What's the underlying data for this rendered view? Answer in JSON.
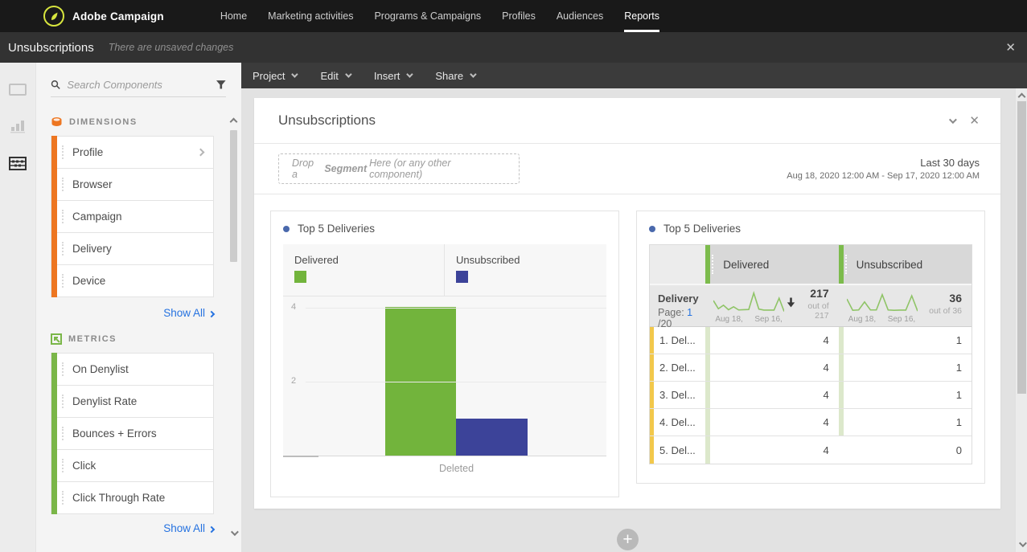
{
  "topnav": {
    "brand": "Adobe Campaign",
    "items": [
      {
        "label": "Home"
      },
      {
        "label": "Marketing activities"
      },
      {
        "label": "Programs & Campaigns"
      },
      {
        "label": "Profiles"
      },
      {
        "label": "Audiences"
      },
      {
        "label": "Reports",
        "active": true
      }
    ]
  },
  "titlebar": {
    "title": "Unsubscriptions",
    "status": "There are unsaved changes"
  },
  "menubar": {
    "items": [
      {
        "label": "Project"
      },
      {
        "label": "Edit"
      },
      {
        "label": "Insert"
      },
      {
        "label": "Share"
      }
    ]
  },
  "sidebar": {
    "search_placeholder": "Search Components",
    "sections": [
      {
        "label": "DIMENSIONS",
        "accent": "#ed7621",
        "items": [
          "Profile",
          "Browser",
          "Campaign",
          "Delivery",
          "Device"
        ],
        "show_all": "Show All"
      },
      {
        "label": "METRICS",
        "accent": "#7ab648",
        "items": [
          "On Denylist",
          "Denylist Rate",
          "Bounces + Errors",
          "Click",
          "Click Through Rate"
        ],
        "show_all": "Show All"
      }
    ]
  },
  "panel": {
    "title": "Unsubscriptions",
    "dropzone": {
      "pre": "Drop a",
      "emphasis": "Segment",
      "post": "Here (or any other component)"
    },
    "date_range": {
      "label": "Last 30 days",
      "detail": "Aug 18, 2020 12:00 AM - Sep 17, 2020 12:00 AM"
    }
  },
  "chart_data": [
    {
      "type": "bar",
      "title": "Top 5 Deliveries",
      "categories": [
        "Deleted"
      ],
      "series": [
        {
          "name": "Delivered",
          "values": [
            4
          ],
          "color": "#72b43c"
        },
        {
          "name": "Unsubscribed",
          "values": [
            1
          ],
          "color": "#3c4399"
        }
      ],
      "ylim": [
        0,
        4.3
      ],
      "yticks": [
        4,
        2
      ],
      "grid": true,
      "legend_position": "top"
    },
    {
      "type": "table",
      "title": "Top 5 Deliveries",
      "row_dimension": "Delivery",
      "page_label": "Page:",
      "page": "1",
      "page_total": "/20",
      "columns": [
        {
          "name": "Delivered",
          "total": "217",
          "out_of": "out of 217",
          "sorted": true,
          "spark_labels": [
            "Aug 18,",
            "Sep 16,"
          ],
          "spark": [
            62,
            20,
            38,
            15,
            30,
            14,
            15,
            16,
            100,
            18,
            13,
            13,
            13,
            74,
            6
          ]
        },
        {
          "name": "Unsubscribed",
          "total": "36",
          "out_of": "out of 36",
          "sorted": false,
          "spark_labels": [
            "Aug 18,",
            "Sep 16,"
          ],
          "spark": [
            70,
            12,
            14,
            55,
            14,
            14,
            92,
            14,
            12,
            13,
            13,
            86,
            8
          ]
        }
      ],
      "rows": [
        {
          "label": "1. Del...",
          "values": [
            4,
            1
          ]
        },
        {
          "label": "2. Del...",
          "values": [
            4,
            1
          ]
        },
        {
          "label": "3. Del...",
          "values": [
            4,
            1
          ]
        },
        {
          "label": "4. Del...",
          "values": [
            4,
            1
          ]
        },
        {
          "label": "5. Del...",
          "values": [
            4,
            0
          ]
        }
      ]
    }
  ],
  "colors": {
    "dimension_accent": "#ed7621",
    "metric_accent": "#7ab648",
    "delivered_bar": "#72b43c",
    "unsubscribed_bar": "#3c4399",
    "row_accent_yellow": "#f2c84b",
    "link_blue": "#2572e0",
    "logo_ring": "#d7e53e"
  },
  "icons": {
    "logo": "adobe-campaign-logo",
    "search": "magnifier",
    "filter": "funnel",
    "dimensions": "database-cylinder",
    "metrics": "metric-box-arrow",
    "sort": "arrow-down",
    "add": "plus-circle",
    "close": "x-mark",
    "collapse": "chevron-down"
  }
}
